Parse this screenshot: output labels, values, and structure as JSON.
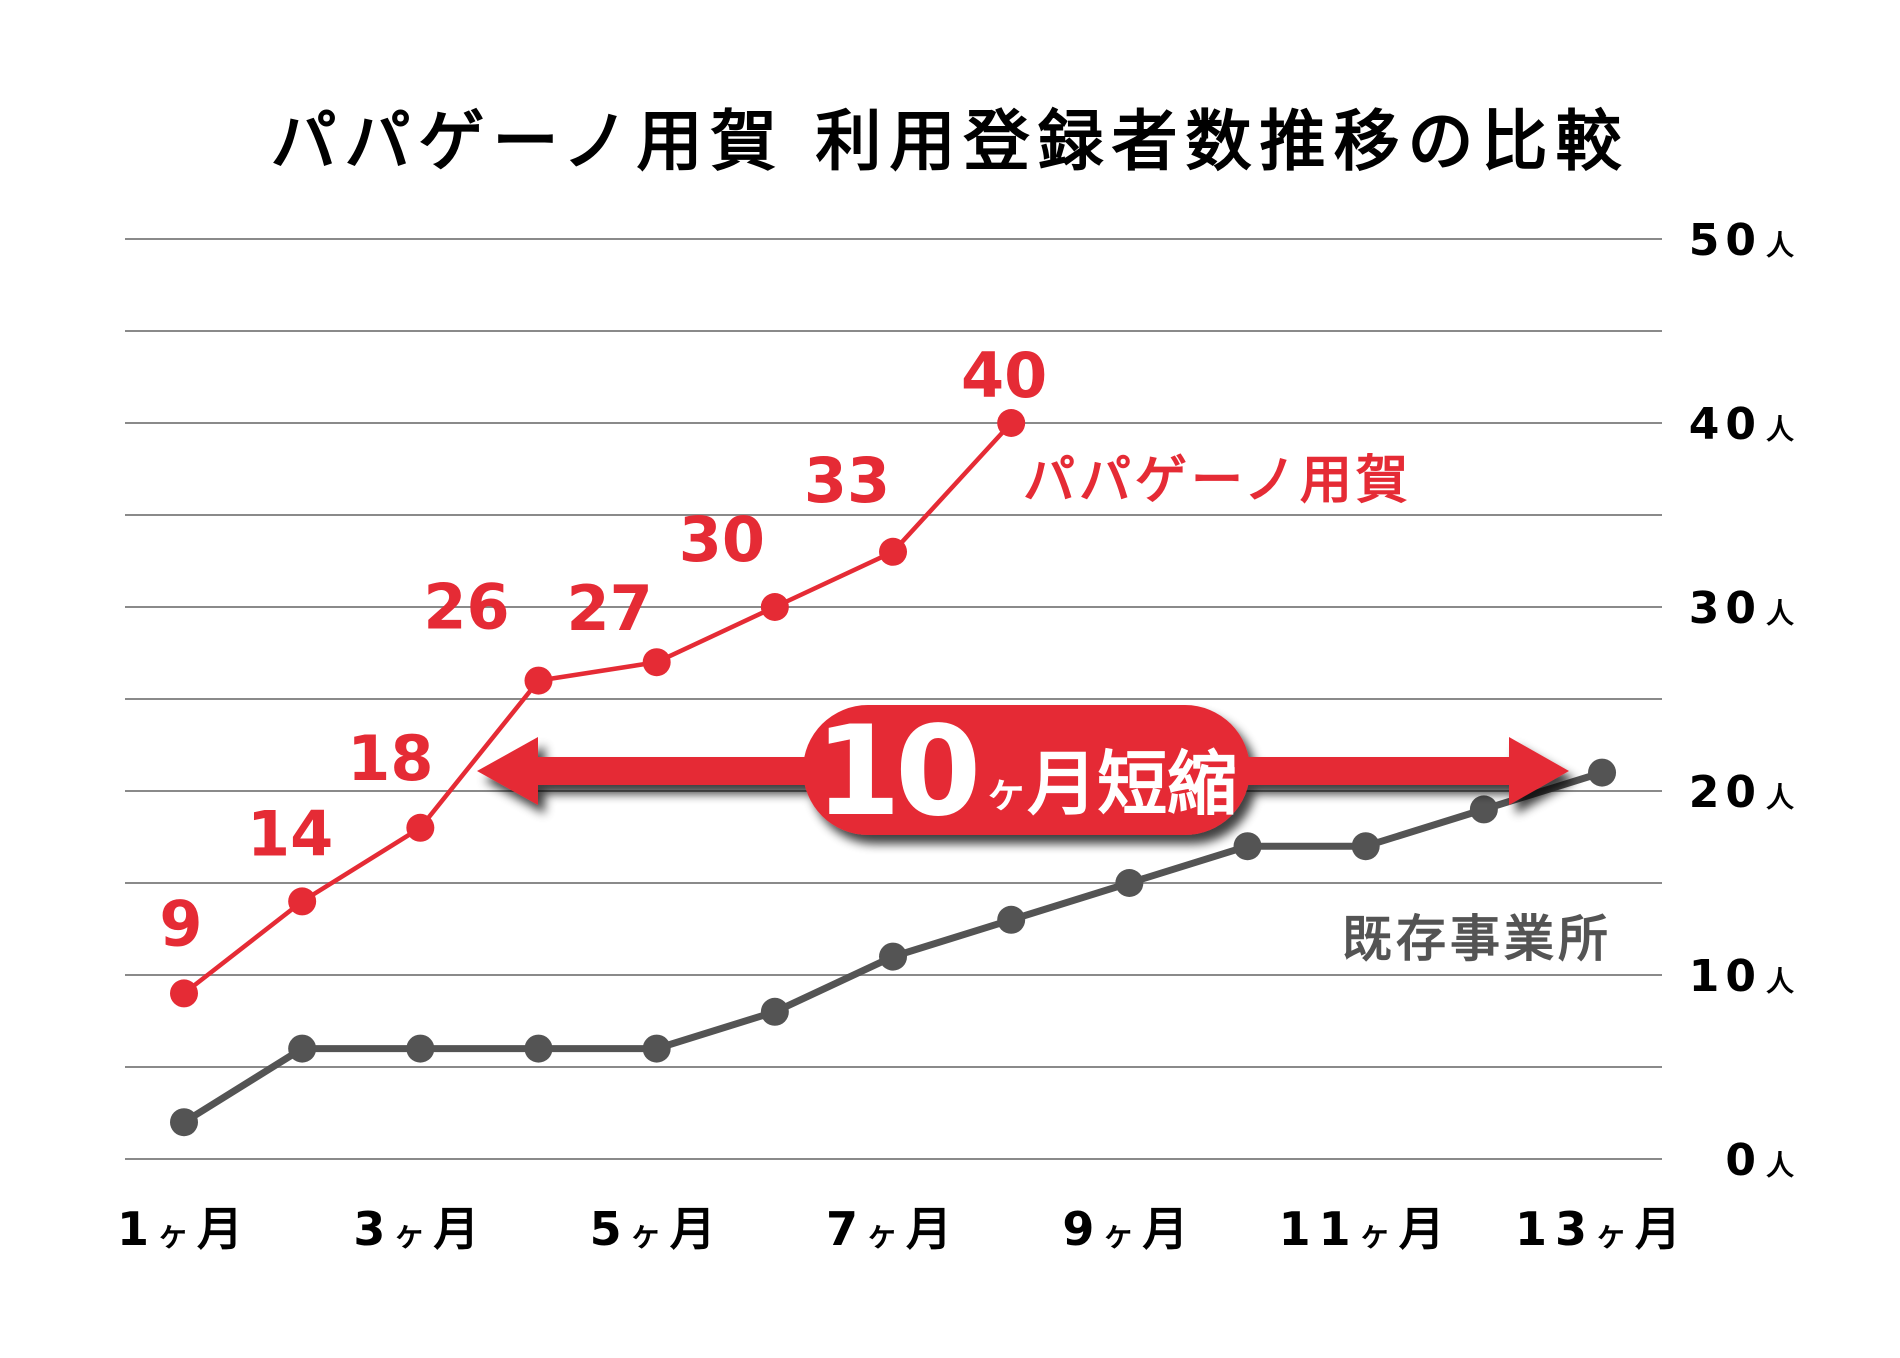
{
  "title": "パパゲーノ用賀 利用登録者数推移の比較",
  "colors": {
    "accent_red": "#E52B35",
    "existing_gray": "#545454",
    "grid": "#8a8a8a",
    "text": "#000000",
    "badge_text": "#ffffff"
  },
  "y_axis": {
    "unit": "人",
    "ticks": [
      {
        "value": 50,
        "num": "50",
        "unit": "人"
      },
      {
        "value": 40,
        "num": "40",
        "unit": "人"
      },
      {
        "value": 30,
        "num": "30",
        "unit": "人"
      },
      {
        "value": 20,
        "num": "20",
        "unit": "人"
      },
      {
        "value": 10,
        "num": "10",
        "unit": "人"
      },
      {
        "value": 0,
        "num": "0",
        "unit": "人"
      }
    ]
  },
  "x_axis": {
    "labels": [
      {
        "month": 1,
        "num": "1",
        "suffix": "ヶ月"
      },
      {
        "month": 3,
        "num": "3",
        "suffix": "ヶ月"
      },
      {
        "month": 5,
        "num": "5",
        "suffix": "ヶ月"
      },
      {
        "month": 7,
        "num": "7",
        "suffix": "ヶ月"
      },
      {
        "month": 9,
        "num": "9",
        "suffix": "ヶ月"
      },
      {
        "month": 11,
        "num": "11",
        "suffix": "ヶ月"
      },
      {
        "month": 13,
        "num": "13",
        "suffix": "ヶ月"
      }
    ]
  },
  "legend": {
    "papageno": "パパゲーノ用賀",
    "existing": "既存事業所"
  },
  "badge": {
    "number": "10",
    "small": "ヶ",
    "text": "月短縮"
  },
  "chart_data": {
    "type": "line",
    "title": "パパゲーノ用賀 利用登録者数推移の比較",
    "xlabel": "",
    "ylabel": "",
    "x": [
      "1ヶ月",
      "2ヶ月",
      "3ヶ月",
      "4ヶ月",
      "5ヶ月",
      "6ヶ月",
      "7ヶ月",
      "8ヶ月",
      "9ヶ月",
      "10ヶ月",
      "11ヶ月",
      "12ヶ月",
      "13ヶ月"
    ],
    "x_tick_labels": [
      "1ヶ月",
      "3ヶ月",
      "5ヶ月",
      "7ヶ月",
      "9ヶ月",
      "11ヶ月",
      "13ヶ月"
    ],
    "y_tick_labels": [
      "0人",
      "10人",
      "20人",
      "30人",
      "40人",
      "50人"
    ],
    "ylim": [
      0,
      50
    ],
    "grid": true,
    "grid_step": 5,
    "y_axis_position": "right",
    "series": [
      {
        "name": "パパゲーノ用賀",
        "color": "#E52B35",
        "data_labels": true,
        "values": [
          9,
          14,
          18,
          26,
          27,
          30,
          33,
          40
        ]
      },
      {
        "name": "既存事業所",
        "color": "#545454",
        "data_labels": false,
        "values": [
          2,
          6,
          6,
          6,
          6,
          8,
          11,
          13,
          15,
          17,
          17,
          19,
          21
        ]
      }
    ],
    "annotations": [
      {
        "type": "double-arrow",
        "text": "10ヶ月短縮",
        "from_month": 4,
        "to_month": 13,
        "y": 21
      }
    ]
  }
}
